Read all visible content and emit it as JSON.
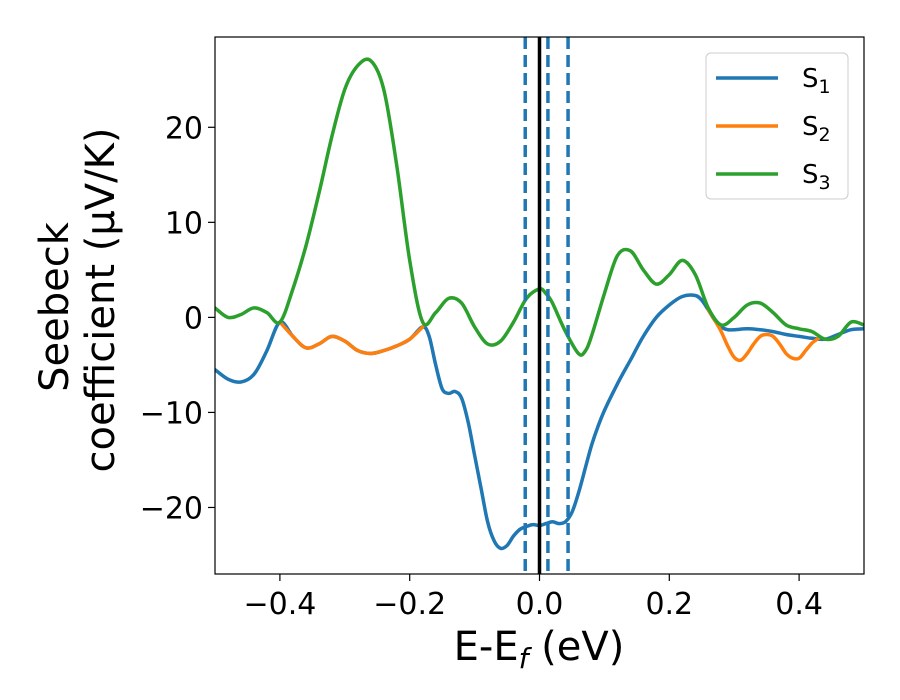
{
  "chart_data": {
    "type": "line",
    "xlabel": "E-E_f (eV)",
    "xlabel_parts": {
      "main": "E-E",
      "sub": "f",
      "tail": " (eV)"
    },
    "ylabel_line1": "Seebeck",
    "ylabel_line2": "coefficient  (μV/K)",
    "xlim": [
      -0.5,
      0.5
    ],
    "ylim": [
      -27,
      29.5
    ],
    "xticks": [
      -0.4,
      -0.2,
      0.0,
      0.2,
      0.4
    ],
    "xtick_labels": [
      "−0.4",
      "−0.2",
      "0.0",
      "0.2",
      "0.4"
    ],
    "yticks": [
      -20,
      -10,
      0,
      10,
      20
    ],
    "ytick_labels": [
      "−20",
      "−10",
      "0",
      "10",
      "20"
    ],
    "legend_position": "top-right",
    "series": [
      {
        "name": "S1",
        "label_main": "S",
        "label_sub": "1",
        "color": "#1f77b4",
        "x": [
          -0.5,
          -0.48,
          -0.46,
          -0.44,
          -0.42,
          -0.4,
          -0.38,
          -0.36,
          -0.34,
          -0.32,
          -0.3,
          -0.28,
          -0.26,
          -0.24,
          -0.22,
          -0.2,
          -0.18,
          -0.17,
          -0.16,
          -0.15,
          -0.14,
          -0.13,
          -0.12,
          -0.11,
          -0.1,
          -0.09,
          -0.08,
          -0.07,
          -0.06,
          -0.05,
          -0.04,
          -0.03,
          -0.02,
          -0.01,
          0.0,
          0.01,
          0.02,
          0.03,
          0.04,
          0.05,
          0.06,
          0.07,
          0.08,
          0.09,
          0.1,
          0.12,
          0.14,
          0.16,
          0.18,
          0.2,
          0.22,
          0.24,
          0.25,
          0.26,
          0.27,
          0.28,
          0.29,
          0.3,
          0.32,
          0.34,
          0.36,
          0.38,
          0.4,
          0.42,
          0.44,
          0.46,
          0.48,
          0.5
        ],
        "y": [
          -5.5,
          -6.5,
          -6.8,
          -6.0,
          -3.5,
          -0.5,
          -2.0,
          -3.2,
          -2.8,
          -2.0,
          -2.5,
          -3.5,
          -3.8,
          -3.5,
          -3.0,
          -2.3,
          -1.0,
          -2.0,
          -5.0,
          -7.5,
          -8.0,
          -7.8,
          -8.5,
          -11.0,
          -14.5,
          -18.0,
          -21.5,
          -23.5,
          -24.3,
          -24.0,
          -23.0,
          -22.3,
          -22.0,
          -21.8,
          -21.9,
          -21.7,
          -21.5,
          -21.7,
          -21.5,
          -20.5,
          -18.5,
          -16.0,
          -13.5,
          -11.5,
          -9.8,
          -7.0,
          -4.5,
          -2.0,
          0.0,
          1.3,
          2.2,
          2.3,
          1.8,
          0.8,
          -0.3,
          -1.0,
          -1.3,
          -1.3,
          -1.2,
          -1.3,
          -1.5,
          -1.8,
          -2.0,
          -2.2,
          -2.3,
          -1.8,
          -1.3,
          -1.2
        ]
      },
      {
        "name": "S2",
        "label_main": "S",
        "label_sub": "2",
        "color": "#ff7f0e",
        "x": [
          -0.4,
          -0.38,
          -0.36,
          -0.34,
          -0.32,
          -0.3,
          -0.28,
          -0.26,
          -0.24,
          -0.22,
          -0.2,
          -0.18,
          0.26,
          0.27,
          0.28,
          0.29,
          0.3,
          0.31,
          0.32,
          0.33,
          0.34,
          0.35,
          0.36,
          0.37,
          0.38,
          0.39,
          0.4,
          0.41,
          0.42,
          0.43
        ],
        "y": [
          -0.5,
          -2.0,
          -3.2,
          -2.8,
          -2.0,
          -2.5,
          -3.5,
          -3.8,
          -3.5,
          -3.0,
          -2.3,
          -1.0,
          0.8,
          -0.3,
          -1.5,
          -3.0,
          -4.2,
          -4.5,
          -3.8,
          -2.8,
          -2.0,
          -1.8,
          -2.0,
          -2.8,
          -3.8,
          -4.3,
          -4.3,
          -3.5,
          -2.7,
          -2.2
        ]
      },
      {
        "name": "S3",
        "label_main": "S",
        "label_sub": "3",
        "color": "#2ca02c",
        "x": [
          -0.5,
          -0.48,
          -0.46,
          -0.44,
          -0.42,
          -0.4,
          -0.38,
          -0.36,
          -0.34,
          -0.32,
          -0.3,
          -0.28,
          -0.26,
          -0.24,
          -0.22,
          -0.2,
          -0.18,
          -0.16,
          -0.14,
          -0.12,
          -0.1,
          -0.08,
          -0.06,
          -0.04,
          -0.02,
          0.0,
          0.01,
          0.02,
          0.04,
          0.06,
          0.07,
          0.08,
          0.1,
          0.12,
          0.14,
          0.16,
          0.18,
          0.2,
          0.22,
          0.24,
          0.26,
          0.28,
          0.3,
          0.32,
          0.34,
          0.36,
          0.38,
          0.4,
          0.42,
          0.44,
          0.46,
          0.48,
          0.5
        ],
        "y": [
          1.0,
          0.0,
          0.3,
          1.0,
          0.5,
          -0.5,
          3.0,
          7.5,
          13.0,
          19.0,
          24.0,
          26.5,
          27.0,
          24.0,
          16.0,
          6.0,
          -0.5,
          0.5,
          2.0,
          1.5,
          -1.0,
          -2.8,
          -2.5,
          -0.5,
          2.0,
          3.0,
          2.5,
          1.5,
          -1.5,
          -3.8,
          -3.6,
          -2.0,
          2.5,
          6.5,
          7.0,
          5.0,
          3.5,
          4.5,
          6.0,
          4.5,
          1.0,
          -0.8,
          0.0,
          1.3,
          1.5,
          0.5,
          -0.8,
          -1.2,
          -1.5,
          -2.3,
          -2.0,
          -0.5,
          -0.8
        ]
      }
    ],
    "vlines": [
      {
        "x": 0.0,
        "style": "solid",
        "color": "#000000"
      },
      {
        "x": -0.022,
        "style": "dashed",
        "color": "#1f77b4"
      },
      {
        "x": 0.013,
        "style": "dashed",
        "color": "#1f77b4"
      },
      {
        "x": 0.044,
        "style": "dashed",
        "color": "#1f77b4"
      }
    ]
  }
}
